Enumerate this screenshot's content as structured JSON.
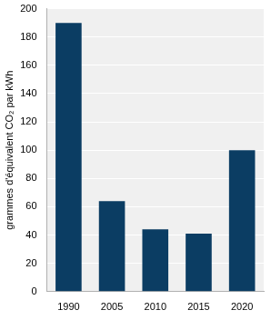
{
  "chart_data": {
    "type": "bar",
    "ylabel": "grammes d'équivalent CO₂ par kWh",
    "categories": [
      "1990",
      "2005",
      "2010",
      "2015",
      "2020"
    ],
    "values": [
      190,
      64,
      44,
      41,
      100
    ],
    "color": "#0b3d63",
    "ylim": [
      0,
      200
    ],
    "yticks": [
      0,
      20,
      40,
      60,
      80,
      100,
      120,
      140,
      160,
      180,
      200
    ],
    "grid": true
  }
}
